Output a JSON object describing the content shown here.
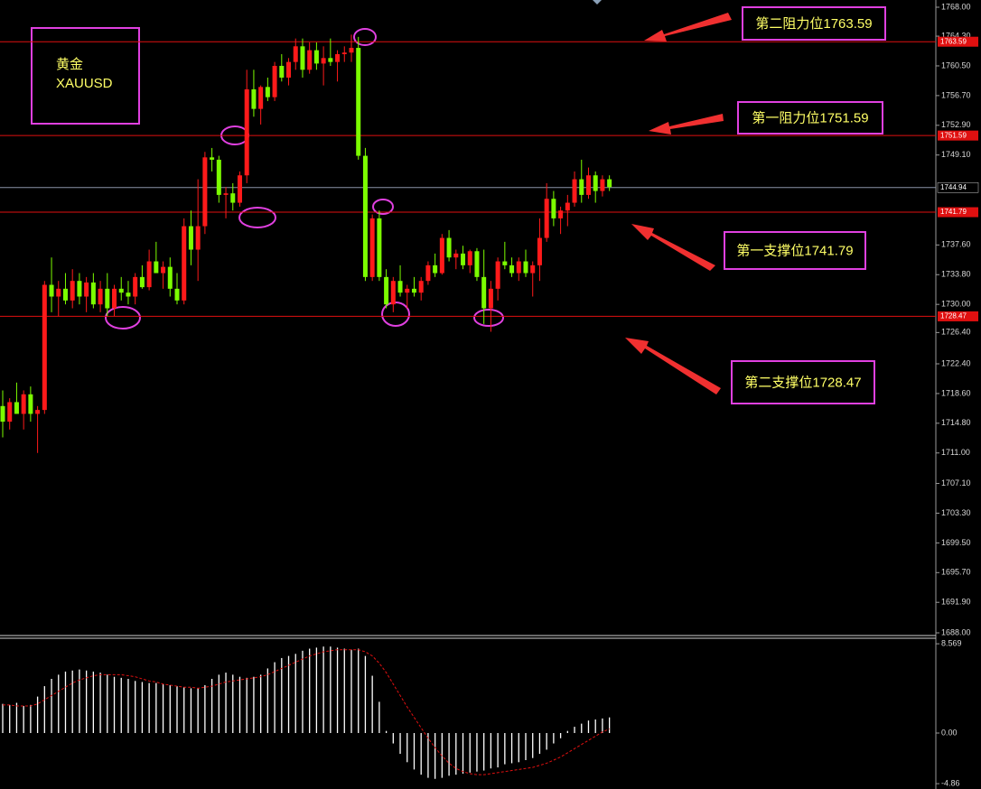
{
  "chart_data": [
    {
      "type": "candlestick",
      "title": "黄金",
      "subtitle": "XAUUSD",
      "up_color": "#ff1a1a",
      "down_color": "#7cfc00",
      "open": [
        1717,
        1715,
        1717.5,
        1716,
        1718.5,
        1716,
        1716.5,
        1732.5,
        1731,
        1732,
        1730.5,
        1733,
        1731,
        1732.8,
        1730,
        1732,
        1729.5,
        1732,
        1731.5,
        1731,
        1733.5,
        1732.2,
        1735.5,
        1734,
        1734.8,
        1732,
        1730.5,
        1740,
        1737,
        1740,
        1748.8,
        1748.5,
        1744,
        1744.2,
        1743,
        1746.5,
        1757.5,
        1755,
        1757.8,
        1756.5,
        1760.5,
        1759,
        1761,
        1763,
        1760,
        1762.5,
        1760.8,
        1761.5,
        1761,
        1762,
        1762.2,
        1762.8,
        1749,
        1733.5,
        1741,
        1733.5,
        1730,
        1733,
        1731.5,
        1732,
        1731.5,
        1733,
        1735,
        1734,
        1738.5,
        1736,
        1736.5,
        1735,
        1736.8,
        1733.5,
        1729.5,
        1732,
        1735.5,
        1735,
        1734,
        1735.5,
        1734,
        1735,
        1738.5,
        1743.5,
        1741,
        1742,
        1743,
        1746,
        1744,
        1746.5,
        1744.5,
        1746
      ],
      "high": [
        1719,
        1718,
        1720,
        1719,
        1719.5,
        1717,
        1733,
        1736,
        1733,
        1734,
        1734.5,
        1734,
        1733.5,
        1734,
        1733,
        1734,
        1732.5,
        1733.5,
        1733,
        1734,
        1735,
        1737,
        1738,
        1735.5,
        1736,
        1734,
        1741,
        1742,
        1746,
        1749.5,
        1750,
        1749,
        1745,
        1745.5,
        1747,
        1760,
        1760,
        1758,
        1759,
        1761,
        1762,
        1761.5,
        1764,
        1764,
        1763.5,
        1763.5,
        1763,
        1764,
        1762.5,
        1763,
        1764.5,
        1764.2,
        1750,
        1741.5,
        1742,
        1734.5,
        1733.5,
        1735,
        1732.5,
        1733.5,
        1733.5,
        1735.5,
        1736.5,
        1739,
        1739.5,
        1737,
        1737.5,
        1737,
        1737.2,
        1737,
        1733,
        1736,
        1738,
        1736,
        1736,
        1737,
        1735.5,
        1741,
        1745.5,
        1744.5,
        1742.5,
        1744,
        1747,
        1748.5,
        1747.5,
        1747,
        1746.5,
        1746.5
      ],
      "low": [
        1713,
        1714,
        1716,
        1714,
        1715,
        1711,
        1716,
        1729,
        1728.5,
        1730,
        1729.5,
        1730,
        1729,
        1729.5,
        1729,
        1728.5,
        1728.5,
        1730.5,
        1730,
        1730,
        1732,
        1731.8,
        1734,
        1732,
        1731,
        1730,
        1730,
        1735,
        1733,
        1739,
        1747,
        1743,
        1741,
        1742,
        1742.5,
        1745.5,
        1754,
        1753,
        1756,
        1756,
        1758.5,
        1758,
        1760,
        1759,
        1759.5,
        1760,
        1758,
        1760.5,
        1758.5,
        1761,
        1761,
        1748.5,
        1733,
        1733,
        1733,
        1729.5,
        1729,
        1731,
        1729.5,
        1731,
        1730.5,
        1732.5,
        1733.5,
        1733.8,
        1735.5,
        1734.5,
        1734.5,
        1734,
        1733,
        1727.5,
        1726.5,
        1730.5,
        1734.5,
        1733.5,
        1733,
        1733.5,
        1731,
        1733,
        1738,
        1740,
        1739,
        1740,
        1742.5,
        1743,
        1743.5,
        1743,
        1743.8,
        1744.5
      ],
      "close": [
        1715,
        1717.5,
        1716,
        1718.5,
        1716,
        1716.5,
        1732.5,
        1731,
        1732,
        1730.5,
        1733,
        1731,
        1732.8,
        1730,
        1732,
        1729.5,
        1732,
        1731.5,
        1731,
        1733.5,
        1732.2,
        1735.5,
        1734,
        1734.8,
        1732,
        1730.5,
        1740,
        1737,
        1740,
        1748.8,
        1748.5,
        1744,
        1744.2,
        1743,
        1746.5,
        1757.5,
        1755,
        1757.8,
        1756.5,
        1760.5,
        1759,
        1761,
        1763,
        1760,
        1762.5,
        1760.8,
        1761.5,
        1761,
        1762,
        1762.2,
        1762.8,
        1749,
        1733.5,
        1741,
        1733.5,
        1730,
        1733,
        1731.5,
        1732,
        1731.5,
        1733,
        1735,
        1734,
        1738.5,
        1736,
        1736.5,
        1735,
        1736.8,
        1733.5,
        1729.5,
        1732,
        1735.5,
        1735,
        1734,
        1735.5,
        1734,
        1735,
        1738.5,
        1743.5,
        1741,
        1742,
        1743,
        1746,
        1744,
        1746.5,
        1744.5,
        1746,
        1745
      ],
      "ylim": [
        1688,
        1768
      ],
      "yticks": [
        {
          "value": 1768,
          "label": "1768.00"
        },
        {
          "value": 1764.3,
          "label": "1764.30"
        },
        {
          "value": 1760.5,
          "label": "1760.50"
        },
        {
          "value": 1756.7,
          "label": "1756.70"
        },
        {
          "value": 1752.9,
          "label": "1752.90"
        },
        {
          "value": 1749.1,
          "label": "1749.10"
        },
        {
          "value": 1737.6,
          "label": "1737.60"
        },
        {
          "value": 1733.8,
          "label": "1733.80"
        },
        {
          "value": 1730,
          "label": "1730.00"
        },
        {
          "value": 1726.4,
          "label": "1726.40"
        },
        {
          "value": 1722.4,
          "label": "1722.40"
        },
        {
          "value": 1718.6,
          "label": "1718.60"
        },
        {
          "value": 1714.8,
          "label": "1714.80"
        },
        {
          "value": 1711,
          "label": "1711.00"
        },
        {
          "value": 1707.1,
          "label": "1707.10"
        },
        {
          "value": 1703.3,
          "label": "1703.30"
        },
        {
          "value": 1699.5,
          "label": "1699.50"
        },
        {
          "value": 1695.7,
          "label": "1695.70"
        },
        {
          "value": 1691.9,
          "label": "1691.90"
        },
        {
          "value": 1688,
          "label": "1688.00"
        }
      ],
      "levels": [
        {
          "value": 1763.59,
          "tag": "1763.59",
          "label": "第二阻力位1763.59",
          "color": "#e01010"
        },
        {
          "value": 1751.59,
          "tag": "1751.59",
          "label": "第一阻力位1751.59",
          "color": "#e01010"
        },
        {
          "value": 1744.94,
          "tag": "1744.94",
          "color": "#8a93a8"
        },
        {
          "value": 1741.79,
          "tag": "1741.79",
          "label": "第一支撑位1741.79",
          "color": "#e01010"
        },
        {
          "value": 1728.47,
          "tag": "1728.47",
          "label": "第二支撑位1728.47",
          "color": "#e01010"
        }
      ]
    },
    {
      "type": "macd",
      "color": "#ffffff",
      "signal_color": "#e01010",
      "histogram": [
        2.8,
        2.7,
        2.9,
        2.6,
        2.7,
        3.5,
        4.5,
        5.2,
        5.6,
        5.9,
        6.0,
        6.1,
        6.0,
        5.9,
        5.8,
        5.6,
        5.4,
        5.3,
        5.2,
        5.0,
        4.9,
        4.8,
        4.8,
        4.7,
        4.6,
        4.5,
        4.4,
        4.3,
        4.3,
        4.6,
        5.2,
        5.6,
        5.8,
        5.6,
        5.4,
        5.3,
        5.4,
        5.6,
        6.2,
        6.8,
        7.2,
        7.4,
        7.6,
        7.9,
        8.1,
        8.2,
        8.3,
        8.3,
        8.2,
        8.1,
        8.0,
        8.1,
        7.4,
        5.5,
        3.0,
        0.2,
        -1.0,
        -2.0,
        -2.8,
        -3.5,
        -4.0,
        -4.3,
        -4.4,
        -4.3,
        -4.1,
        -4.0,
        -3.9,
        -3.8,
        -3.7,
        -3.6,
        -3.4,
        -3.3,
        -3.0,
        -2.9,
        -2.8,
        -2.6,
        -2.4,
        -2.0,
        -1.6,
        -1.0,
        -0.5,
        0.2,
        0.6,
        0.9,
        1.2,
        1.3,
        1.4,
        1.5
      ],
      "signal": [
        2.7,
        2.7,
        2.6,
        2.6,
        2.6,
        2.8,
        3.2,
        3.6,
        4.0,
        4.4,
        4.8,
        5.1,
        5.3,
        5.5,
        5.6,
        5.6,
        5.6,
        5.6,
        5.5,
        5.4,
        5.2,
        5.0,
        4.9,
        4.7,
        4.6,
        4.5,
        4.4,
        4.4,
        4.3,
        4.4,
        4.5,
        4.7,
        4.9,
        5.0,
        5.1,
        5.2,
        5.3,
        5.4,
        5.6,
        5.9,
        6.2,
        6.5,
        6.8,
        7.1,
        7.4,
        7.6,
        7.8,
        7.9,
        8.0,
        8.0,
        8.0,
        8.0,
        7.8,
        7.4,
        6.7,
        5.8,
        4.7,
        3.6,
        2.5,
        1.5,
        0.5,
        -0.5,
        -1.4,
        -2.2,
        -2.9,
        -3.4,
        -3.7,
        -3.9,
        -4.0,
        -4.0,
        -3.9,
        -3.8,
        -3.7,
        -3.6,
        -3.5,
        -3.4,
        -3.3,
        -3.1,
        -2.9,
        -2.6,
        -2.3,
        -1.9,
        -1.5,
        -1.1,
        -0.7,
        -0.3,
        0.1,
        0.4
      ],
      "ylim": [
        -5.2,
        9.1
      ],
      "yticks": [
        8.569,
        {
          "value": 0,
          "label": "0.00"
        },
        -4.86
      ]
    }
  ]
}
